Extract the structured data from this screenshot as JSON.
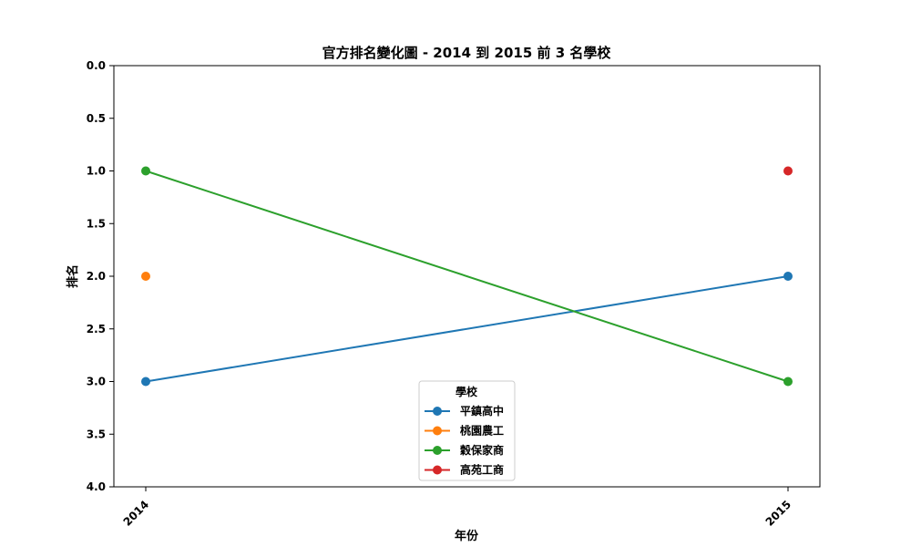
{
  "chart_data": {
    "type": "line",
    "title": "官方排名變化圖 - 2014 到 2015 前 3 名學校",
    "xlabel": "年份",
    "ylabel": "排名",
    "categories": [
      "2014",
      "2015"
    ],
    "ylim": [
      4.0,
      0.0
    ],
    "y_inverted": true,
    "yticks": [
      "0.0",
      "0.5",
      "1.0",
      "1.5",
      "2.0",
      "2.5",
      "3.0",
      "3.5",
      "4.0"
    ],
    "grid": false,
    "legend": {
      "title": "學校",
      "placement": "lower-center"
    },
    "series": [
      {
        "name": "平鎮高中",
        "color": "#1f77b4",
        "values": [
          3,
          2
        ]
      },
      {
        "name": "桃園農工",
        "color": "#ff7f0e",
        "values": [
          2,
          null
        ]
      },
      {
        "name": "穀保家商",
        "color": "#2ca02c",
        "values": [
          1,
          3
        ]
      },
      {
        "name": "高苑工商",
        "color": "#d62728",
        "values": [
          null,
          1
        ]
      }
    ]
  }
}
